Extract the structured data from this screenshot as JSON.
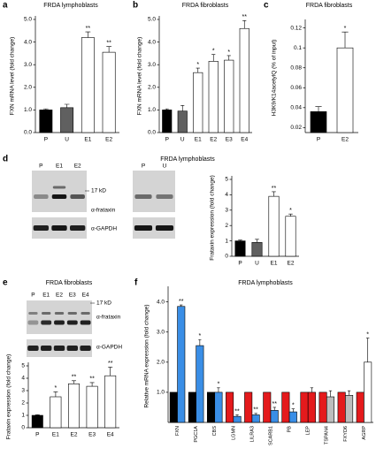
{
  "chart_data": [
    {
      "type": "bar",
      "panel": "a",
      "title": "FRDA lymphoblasts",
      "ylabel": "FXN mRNA level (fold change)",
      "categories": [
        "P",
        "U",
        "E1",
        "E2"
      ],
      "values": [
        1.0,
        1.1,
        4.2,
        3.55
      ],
      "errors": [
        0.05,
        0.15,
        0.25,
        0.25
      ],
      "colors": [
        "#000000",
        "#606060",
        "#ffffff",
        "#ffffff"
      ],
      "annotations": [
        null,
        null,
        "**",
        "**"
      ],
      "ylim": [
        0,
        5
      ],
      "yticks": [
        {
          "value": 0,
          "label": "0.0"
        },
        {
          "value": 1,
          "label": "1.0"
        },
        {
          "value": 2,
          "label": "2.0"
        },
        {
          "value": 3,
          "label": "3.0"
        },
        {
          "value": 4,
          "label": "4.0"
        },
        {
          "value": 5,
          "label": "5.0"
        }
      ]
    },
    {
      "type": "bar",
      "panel": "b",
      "title": "FRDA fibroblasts",
      "ylabel": "FXN mRNA level (fold change)",
      "categories": [
        "P",
        "U",
        "E1",
        "E2",
        "E3",
        "E4"
      ],
      "values": [
        1.0,
        0.95,
        2.65,
        3.15,
        3.2,
        4.6
      ],
      "errors": [
        0.05,
        0.25,
        0.2,
        0.3,
        0.2,
        0.35
      ],
      "colors": [
        "#000000",
        "#606060",
        "#ffffff",
        "#ffffff",
        "#ffffff",
        "#ffffff"
      ],
      "annotations": [
        null,
        null,
        "*",
        "*",
        "*",
        "**"
      ],
      "ylim": [
        0,
        5
      ],
      "yticks": [
        {
          "value": 0,
          "label": "0.0"
        },
        {
          "value": 1,
          "label": "1.0"
        },
        {
          "value": 2,
          "label": "2.0"
        },
        {
          "value": 3,
          "label": "3.0"
        },
        {
          "value": 4,
          "label": "4.0"
        },
        {
          "value": 5,
          "label": "5.0"
        }
      ]
    },
    {
      "type": "bar",
      "panel": "c",
      "title": "FRDA fibroblasts",
      "ylabel": "H3K9/K14acetylQ (% of input)",
      "categories": [
        "P",
        "E2"
      ],
      "values": [
        0.036,
        0.1
      ],
      "errors": [
        0.005,
        0.016
      ],
      "colors": [
        "#000000",
        "#ffffff"
      ],
      "annotations": [
        null,
        "*"
      ],
      "ylim": [
        0.015,
        0.125
      ],
      "yticks": [
        0.02,
        0.04,
        0.06,
        0.08,
        0.1,
        0.12
      ]
    },
    {
      "type": "bar",
      "panel": "d",
      "title": "FRDA lymphoblasts",
      "ylabel": "Frataxin expression (fold change)",
      "categories": [
        "P",
        "U",
        "E1",
        "E2"
      ],
      "values": [
        1.0,
        0.9,
        3.9,
        2.6
      ],
      "errors": [
        0.05,
        0.2,
        0.3,
        0.15
      ],
      "colors": [
        "#000000",
        "#606060",
        "#ffffff",
        "#ffffff"
      ],
      "annotations": [
        null,
        null,
        "**",
        "*"
      ],
      "ylim": [
        0,
        5
      ],
      "yticks": [
        0,
        1,
        2,
        3,
        4,
        5
      ]
    },
    {
      "type": "bar",
      "panel": "e",
      "title": "FRDA fibroblasts",
      "ylabel": "Frataxin expression (fold change)",
      "categories": [
        "P",
        "E1",
        "E2",
        "E3",
        "E4"
      ],
      "values": [
        1.0,
        2.5,
        3.55,
        3.35,
        4.2
      ],
      "errors": [
        0.05,
        0.4,
        0.25,
        0.3,
        0.7
      ],
      "colors": [
        "#000000",
        "#ffffff",
        "#ffffff",
        "#ffffff",
        "#ffffff"
      ],
      "annotations": [
        null,
        "*",
        "**",
        "**",
        "**"
      ],
      "ylim": [
        0,
        5
      ],
      "yticks": [
        0,
        1,
        2,
        3,
        4,
        5
      ]
    },
    {
      "type": "bar",
      "panel": "f",
      "title": "FRDA lymphoblasts",
      "ylabel": "Relative mRNA expression (fold change)",
      "categories": [
        "FXN",
        "PGC1A",
        "CBS",
        "LGMN",
        "LILRA3",
        "SCARB1",
        "PB",
        "LEP",
        "TSPAN4",
        "FXYD6",
        "AGRP"
      ],
      "series": [
        {
          "values": [
            1,
            1,
            1,
            1,
            1,
            1,
            1,
            1,
            1,
            1,
            1
          ],
          "colors": [
            "#000000",
            "#000000",
            "#000000",
            "#e41a1c",
            "#e41a1c",
            "#e41a1c",
            "#e41a1c",
            "#e41a1c",
            "#e41a1c",
            "#e41a1c",
            "#e41a1c"
          ]
        },
        {
          "values": [
            3.85,
            2.55,
            1.0,
            0.2,
            0.25,
            0.4,
            0.35,
            1.0,
            0.85,
            0.9,
            2.0
          ],
          "errors": [
            0.05,
            0.2,
            0.15,
            0.05,
            0.05,
            0.1,
            0.1,
            0.15,
            0.2,
            0.15,
            0.8
          ],
          "colors": [
            "#3a8ee6",
            "#3a8ee6",
            "#3a8ee6",
            "#3a8ee6",
            "#3a8ee6",
            "#3a8ee6",
            "#3a8ee6",
            "#e41a1c",
            "#bdbdbd",
            "#bdbdbd",
            "#ffffff"
          ],
          "annotations": [
            "**",
            "*",
            "*",
            "**",
            "**",
            "**",
            "*",
            null,
            null,
            null,
            "*"
          ]
        }
      ],
      "ylim": [
        0,
        4.4
      ],
      "yticks": [
        {
          "value": 1,
          "label": "1.0"
        },
        {
          "value": 2,
          "label": "2.0"
        },
        {
          "value": 3,
          "label": "3.0"
        },
        {
          "value": 4,
          "label": "4.0"
        }
      ]
    }
  ],
  "western_blots": [
    {
      "lanes": [
        "P",
        "E1",
        "E2"
      ],
      "marker": "17 kD",
      "antibodies": [
        "α-frataxin",
        "α-GAPDH"
      ]
    },
    {
      "lanes": [
        "P",
        "U"
      ]
    },
    {
      "lanes": [
        "P",
        "E1",
        "E2",
        "E3",
        "E4"
      ],
      "marker": "17 kD",
      "antibodies": [
        "α-frataxin",
        "α-GAPDH"
      ]
    }
  ]
}
